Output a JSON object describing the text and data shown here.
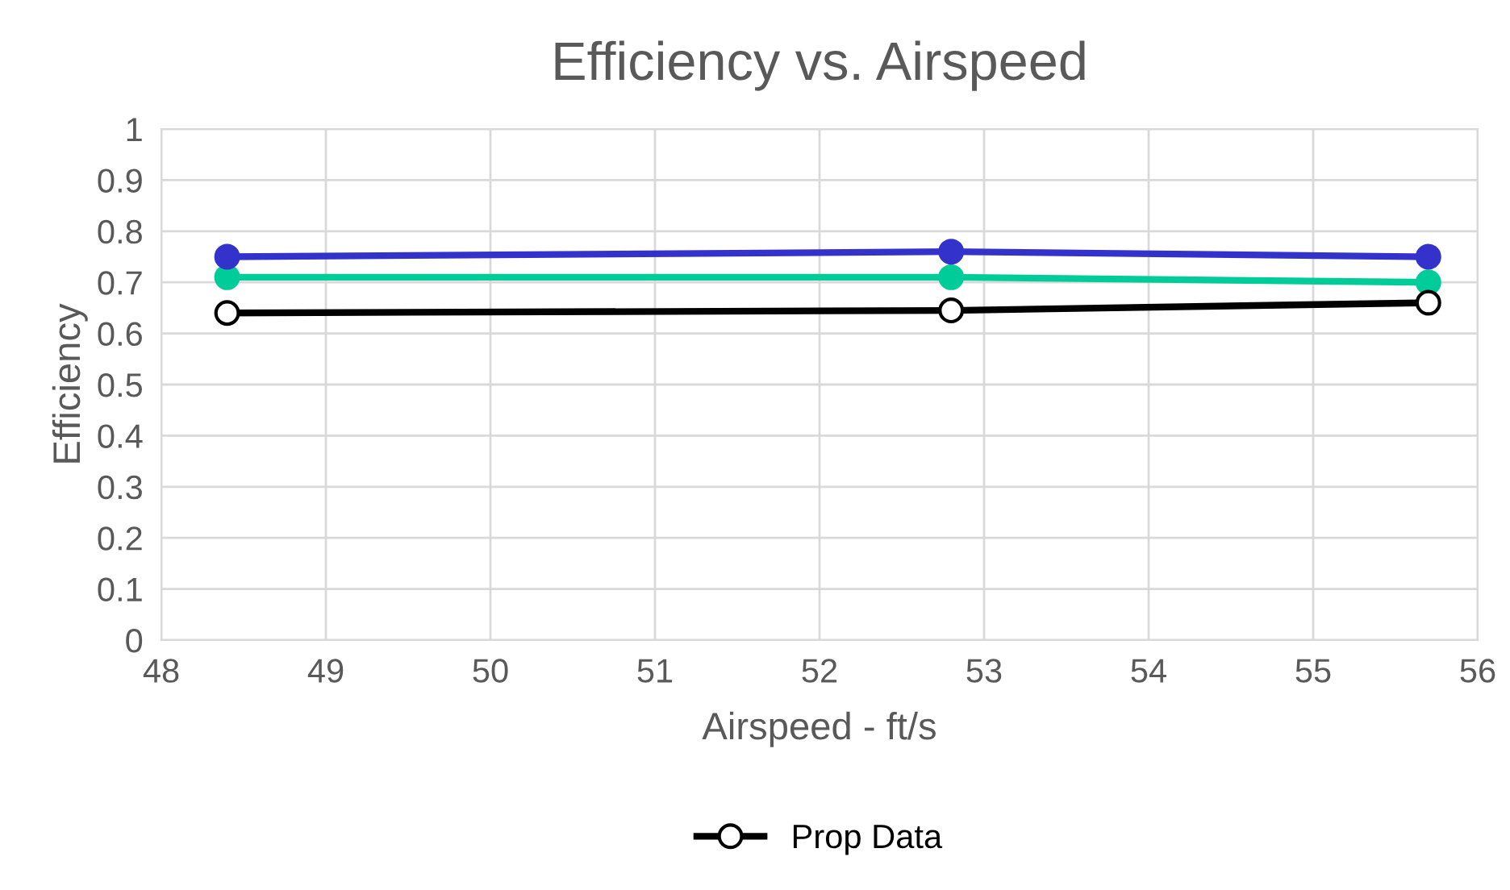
{
  "chart_data": {
    "type": "line",
    "title": "Efficiency vs. Airspeed",
    "xlabel": "Airspeed - ft/s",
    "ylabel": "Efficiency",
    "x": [
      48.4,
      52.8,
      55.7
    ],
    "series": [
      {
        "color": "#00cc99",
        "values": [
          0.71,
          0.71,
          0.7
        ]
      },
      {
        "color": "#3333cc",
        "values": [
          0.75,
          0.76,
          0.75
        ]
      },
      {
        "name": "Prop Data",
        "color": "#000000",
        "values": [
          0.64,
          0.645,
          0.66
        ]
      }
    ],
    "xlim": [
      48,
      56
    ],
    "xticks": [
      48,
      49,
      50,
      51,
      52,
      53,
      54,
      55,
      56
    ],
    "ylim": [
      0,
      1
    ],
    "yticks": [
      0,
      0.1,
      0.2,
      0.3,
      0.4,
      0.5,
      0.6,
      0.7,
      0.8,
      0.9,
      1
    ],
    "grid": true,
    "legend": "bottom",
    "marker": "circle",
    "line_style": "solid"
  }
}
